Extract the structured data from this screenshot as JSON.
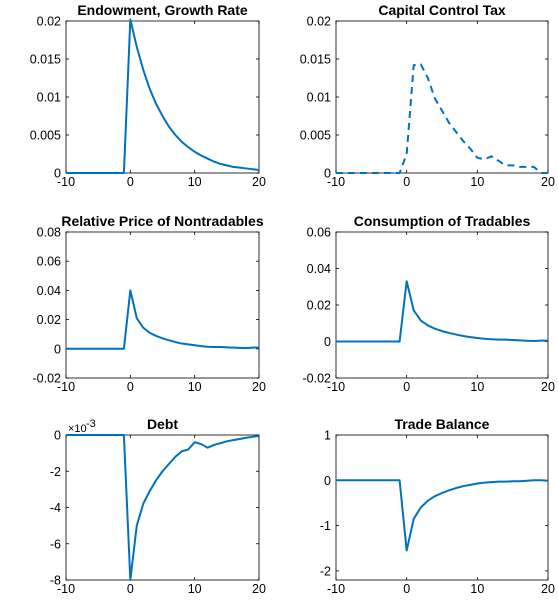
{
  "chart_data": [
    {
      "type": "line",
      "title": "Endowment, Growth Rate",
      "xlim": [
        -10,
        20
      ],
      "ylim": [
        0,
        0.02
      ],
      "xticks": [
        -10,
        0,
        10,
        20
      ],
      "xtick_labels": [
        "-10",
        "0",
        "10",
        "20"
      ],
      "yticks": [
        0,
        0.005,
        0.01,
        0.015,
        0.02
      ],
      "ytick_labels": [
        "0",
        "0.005",
        "0.01",
        "0.015",
        "0.02"
      ],
      "series": [
        {
          "style": "solid",
          "color": "#0072BD",
          "x": [
            -10,
            -9,
            -8,
            -7,
            -6,
            -5,
            -4,
            -3,
            -2,
            -1,
            0,
            1,
            2,
            3,
            4,
            5,
            6,
            7,
            8,
            9,
            10,
            11,
            12,
            13,
            14,
            15,
            16,
            17,
            18,
            19,
            20
          ],
          "y": [
            0,
            0,
            0,
            0,
            0,
            0,
            0,
            0,
            0,
            0,
            0.0202,
            0.0166,
            0.0136,
            0.0111,
            0.0091,
            0.0075,
            0.0061,
            0.005,
            0.0041,
            0.0034,
            0.0028,
            0.0023,
            0.0019,
            0.0015,
            0.0012,
            0.001,
            0.0008,
            0.0007,
            0.0006,
            0.0005,
            0.0004
          ]
        }
      ]
    },
    {
      "type": "line",
      "title": "Capital Control Tax",
      "xlim": [
        -10,
        20
      ],
      "ylim": [
        0,
        0.02
      ],
      "xticks": [
        -10,
        0,
        10,
        20
      ],
      "xtick_labels": [
        "-10",
        "0",
        "10",
        "20"
      ],
      "yticks": [
        0,
        0.005,
        0.01,
        0.015,
        0.02
      ],
      "ytick_labels": [
        "0",
        "0.005",
        "0.01",
        "0.015",
        "0.02"
      ],
      "series": [
        {
          "style": "dashed",
          "color": "#0072BD",
          "x": [
            -10,
            -9,
            -8,
            -7,
            -6,
            -5,
            -4,
            -3,
            -2,
            -1,
            0,
            1,
            2,
            3,
            4,
            5,
            6,
            7,
            8,
            9,
            10,
            11,
            12,
            13,
            14,
            15,
            16,
            17,
            18,
            19,
            20
          ],
          "y": [
            0,
            0,
            0,
            0,
            0,
            0,
            0,
            0,
            0,
            0,
            0.0025,
            0.0142,
            0.0143,
            0.0125,
            0.0098,
            0.0082,
            0.0066,
            0.0054,
            0.0042,
            0.0032,
            0.002,
            0.0018,
            0.0022,
            0.0016,
            0.001,
            0.001,
            0.0008,
            0.0008,
            0.0008,
            0,
            0
          ]
        }
      ]
    },
    {
      "type": "line",
      "title": "Relative Price of Nontradables",
      "xlim": [
        -10,
        20
      ],
      "ylim": [
        -0.02,
        0.08
      ],
      "xticks": [
        -10,
        0,
        10,
        20
      ],
      "xtick_labels": [
        "-10",
        "0",
        "10",
        "20"
      ],
      "yticks": [
        -0.02,
        0,
        0.02,
        0.04,
        0.06,
        0.08
      ],
      "ytick_labels": [
        "-0.02",
        "0",
        "0.02",
        "0.04",
        "0.06",
        "0.08"
      ],
      "series": [
        {
          "style": "solid",
          "color": "#0072BD",
          "x": [
            -10,
            -9,
            -8,
            -7,
            -6,
            -5,
            -4,
            -3,
            -2,
            -1,
            0,
            1,
            2,
            3,
            4,
            5,
            6,
            7,
            8,
            9,
            10,
            11,
            12,
            13,
            14,
            15,
            16,
            17,
            18,
            19,
            20
          ],
          "y": [
            0,
            0,
            0,
            0,
            0,
            0,
            0,
            0,
            0,
            0,
            0.04,
            0.021,
            0.0145,
            0.011,
            0.0088,
            0.0072,
            0.0058,
            0.0046,
            0.0036,
            0.003,
            0.0024,
            0.0018,
            0.0014,
            0.0012,
            0.0012,
            0.001,
            0.0008,
            0.0006,
            0.0005,
            0.0008,
            0.0008
          ]
        }
      ]
    },
    {
      "type": "line",
      "title": "Consumption of Tradables",
      "xlim": [
        -10,
        20
      ],
      "ylim": [
        -0.02,
        0.06
      ],
      "xticks": [
        -10,
        0,
        10,
        20
      ],
      "xtick_labels": [
        "-10",
        "0",
        "10",
        "20"
      ],
      "yticks": [
        -0.02,
        0,
        0.02,
        0.04,
        0.06
      ],
      "ytick_labels": [
        "-0.02",
        "0",
        "0.02",
        "0.04",
        "0.06"
      ],
      "series": [
        {
          "style": "solid",
          "color": "#0072BD",
          "x": [
            -10,
            -9,
            -8,
            -7,
            -6,
            -5,
            -4,
            -3,
            -2,
            -1,
            0,
            1,
            2,
            3,
            4,
            5,
            6,
            7,
            8,
            9,
            10,
            11,
            12,
            13,
            14,
            15,
            16,
            17,
            18,
            19,
            20
          ],
          "y": [
            0,
            0,
            0,
            0,
            0,
            0,
            0,
            0,
            0,
            0,
            0.033,
            0.017,
            0.0115,
            0.0088,
            0.007,
            0.0057,
            0.0047,
            0.0038,
            0.003,
            0.0024,
            0.0019,
            0.0015,
            0.0012,
            0.001,
            0.001,
            0.0008,
            0.0006,
            0.0004,
            0.0003,
            0.0005,
            0.0005
          ]
        }
      ]
    },
    {
      "type": "line",
      "title": "Debt",
      "y_multiplier": "×10",
      "y_multiplier_exponent": "-3",
      "xlim": [
        -10,
        20
      ],
      "ylim": [
        -8,
        0
      ],
      "xticks": [
        -10,
        0,
        10,
        20
      ],
      "xtick_labels": [
        "-10",
        "0",
        "10",
        "20"
      ],
      "yticks": [
        -8,
        -6,
        -4,
        -2,
        0
      ],
      "ytick_labels": [
        "-8",
        "-6",
        "-4",
        "-2",
        "0"
      ],
      "series": [
        {
          "style": "solid",
          "color": "#0072BD",
          "x": [
            -10,
            -9,
            -8,
            -7,
            -6,
            -5,
            -4,
            -3,
            -2,
            -1,
            0,
            1,
            2,
            3,
            4,
            5,
            6,
            7,
            8,
            9,
            10,
            11,
            12,
            13,
            14,
            15,
            16,
            17,
            18,
            19,
            20
          ],
          "y": [
            0,
            0,
            0,
            0,
            0,
            0,
            0,
            0,
            0,
            0,
            -8.0,
            -5.0,
            -3.8,
            -3.1,
            -2.5,
            -2.0,
            -1.6,
            -1.2,
            -0.9,
            -0.8,
            -0.4,
            -0.5,
            -0.7,
            -0.55,
            -0.45,
            -0.35,
            -0.28,
            -0.22,
            -0.15,
            -0.1,
            -0.05
          ]
        }
      ]
    },
    {
      "type": "line",
      "title": "Trade Balance",
      "xlim": [
        -10,
        20
      ],
      "ylim": [
        -2.2,
        1
      ],
      "xticks": [
        -10,
        0,
        10,
        20
      ],
      "xtick_labels": [
        "-10",
        "0",
        "10",
        "20"
      ],
      "yticks": [
        -2,
        -1,
        0,
        1
      ],
      "ytick_labels": [
        "-2",
        "-1",
        "0",
        "1"
      ],
      "series": [
        {
          "style": "solid",
          "color": "#0072BD",
          "x": [
            -10,
            -9,
            -8,
            -7,
            -6,
            -5,
            -4,
            -3,
            -2,
            -1,
            0,
            1,
            2,
            3,
            4,
            5,
            6,
            7,
            8,
            9,
            10,
            11,
            12,
            13,
            14,
            15,
            16,
            17,
            18,
            19,
            20
          ],
          "y": [
            0,
            0,
            0,
            0,
            0,
            0,
            0,
            0,
            0,
            0,
            -1.55,
            -0.85,
            -0.6,
            -0.45,
            -0.35,
            -0.28,
            -0.22,
            -0.17,
            -0.13,
            -0.1,
            -0.07,
            -0.05,
            -0.04,
            -0.03,
            -0.03,
            -0.02,
            -0.02,
            -0.01,
            0,
            0,
            -0.01
          ]
        }
      ]
    }
  ]
}
